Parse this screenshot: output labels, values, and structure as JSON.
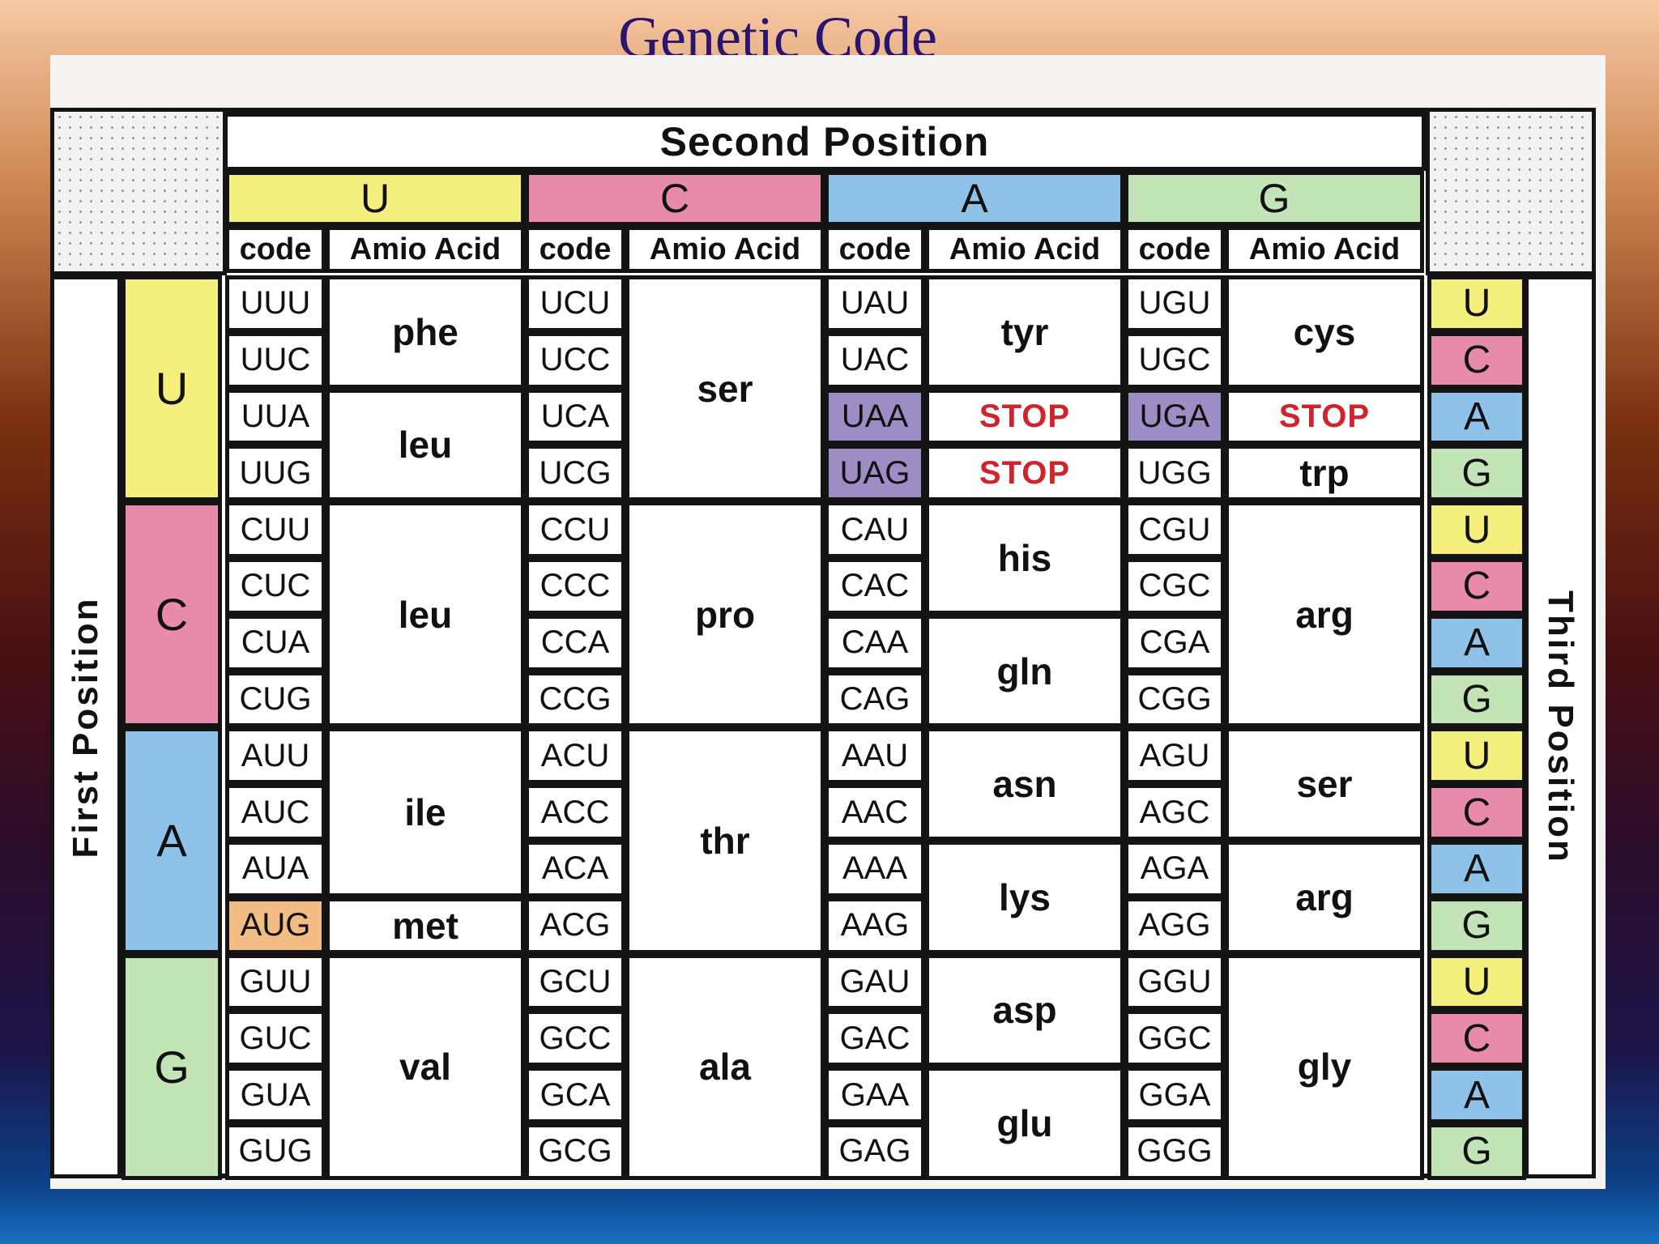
{
  "title": "Genetic Code",
  "labels": {
    "second_position": "Second Position",
    "first_position": "First Position",
    "third_position": "Third Position",
    "code": "code",
    "amino_acid": "Amio Acid"
  },
  "bases": [
    "U",
    "C",
    "A",
    "G"
  ],
  "colors": {
    "U": "#f5f07e",
    "C": "#e88aaa",
    "A": "#8ec2e8",
    "G": "#c3e4b6",
    "stop_codon": "#9e8cc4",
    "start_codon": "#f2bd84",
    "stop_text": "#d0232c"
  },
  "table": [
    {
      "first": "U",
      "columns": [
        {
          "codons": [
            "UUU",
            "UUC",
            "UUA",
            "UUG"
          ],
          "groups": [
            {
              "label": "phe",
              "rows": 2
            },
            {
              "label": "leu",
              "rows": 2
            }
          ]
        },
        {
          "codons": [
            "UCU",
            "UCC",
            "UCA",
            "UCG"
          ],
          "groups": [
            {
              "label": "ser",
              "rows": 4
            }
          ]
        },
        {
          "codons": [
            "UAU",
            "UAC",
            "UAA",
            "UAG"
          ],
          "groups": [
            {
              "label": "tyr",
              "rows": 2
            },
            {
              "label": "STOP",
              "rows": 1,
              "stop": true
            },
            {
              "label": "STOP",
              "rows": 1,
              "stop": true
            }
          ]
        },
        {
          "codons": [
            "UGU",
            "UGC",
            "UGA",
            "UGG"
          ],
          "groups": [
            {
              "label": "cys",
              "rows": 2
            },
            {
              "label": "STOP",
              "rows": 1,
              "stop": true
            },
            {
              "label": "trp",
              "rows": 1
            }
          ]
        }
      ]
    },
    {
      "first": "C",
      "columns": [
        {
          "codons": [
            "CUU",
            "CUC",
            "CUA",
            "CUG"
          ],
          "groups": [
            {
              "label": "leu",
              "rows": 4
            }
          ]
        },
        {
          "codons": [
            "CCU",
            "CCC",
            "CCA",
            "CCG"
          ],
          "groups": [
            {
              "label": "pro",
              "rows": 4
            }
          ]
        },
        {
          "codons": [
            "CAU",
            "CAC",
            "CAA",
            "CAG"
          ],
          "groups": [
            {
              "label": "his",
              "rows": 2
            },
            {
              "label": "gln",
              "rows": 2
            }
          ]
        },
        {
          "codons": [
            "CGU",
            "CGC",
            "CGA",
            "CGG"
          ],
          "groups": [
            {
              "label": "arg",
              "rows": 4
            }
          ]
        }
      ]
    },
    {
      "first": "A",
      "columns": [
        {
          "codons": [
            "AUU",
            "AUC",
            "AUA",
            "AUG"
          ],
          "groups": [
            {
              "label": "ile",
              "rows": 3
            },
            {
              "label": "met",
              "rows": 1
            }
          ]
        },
        {
          "codons": [
            "ACU",
            "ACC",
            "ACA",
            "ACG"
          ],
          "groups": [
            {
              "label": "thr",
              "rows": 4
            }
          ]
        },
        {
          "codons": [
            "AAU",
            "AAC",
            "AAA",
            "AAG"
          ],
          "groups": [
            {
              "label": "asn",
              "rows": 2
            },
            {
              "label": "lys",
              "rows": 2
            }
          ]
        },
        {
          "codons": [
            "AGU",
            "AGC",
            "AGA",
            "AGG"
          ],
          "groups": [
            {
              "label": "ser",
              "rows": 2
            },
            {
              "label": "arg",
              "rows": 2
            }
          ]
        }
      ]
    },
    {
      "first": "G",
      "columns": [
        {
          "codons": [
            "GUU",
            "GUC",
            "GUA",
            "GUG"
          ],
          "groups": [
            {
              "label": "val",
              "rows": 4
            }
          ]
        },
        {
          "codons": [
            "GCU",
            "GCC",
            "GCA",
            "GCG"
          ],
          "groups": [
            {
              "label": "ala",
              "rows": 4
            }
          ]
        },
        {
          "codons": [
            "GAU",
            "GAC",
            "GAA",
            "GAG"
          ],
          "groups": [
            {
              "label": "asp",
              "rows": 2
            },
            {
              "label": "glu",
              "rows": 2
            }
          ]
        },
        {
          "codons": [
            "GGU",
            "GGC",
            "GGA",
            "GGG"
          ],
          "groups": [
            {
              "label": "gly",
              "rows": 4
            }
          ]
        }
      ]
    }
  ],
  "stop_codons": [
    "UAA",
    "UAG",
    "UGA"
  ],
  "start_codons": [
    "AUG"
  ]
}
